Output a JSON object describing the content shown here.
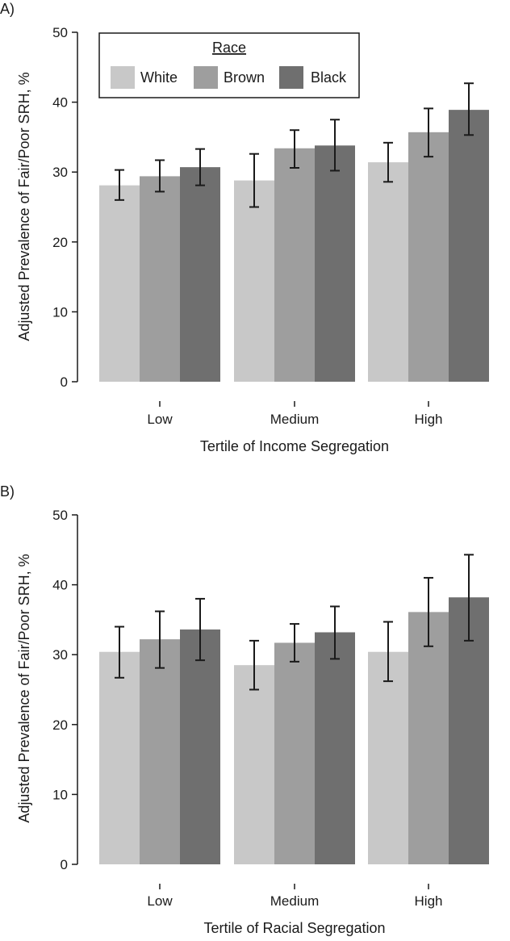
{
  "legend": {
    "title": "Race",
    "entries": [
      "White",
      "Brown",
      "Black"
    ]
  },
  "colors": {
    "White": "#c8c8c8",
    "Brown": "#9e9e9e",
    "Black": "#6f6f6f",
    "axis": "#1a1a1a",
    "errorbar": "#1a1a1a"
  },
  "chart_data": [
    {
      "type": "bar",
      "panel_label": "A)",
      "title": "",
      "xlabel": "Tertile of Income Segregation",
      "ylabel": "Adjusted Prevalence of Fair/Poor SRH, %",
      "ylim": [
        0,
        50
      ],
      "yticks": [
        0,
        10,
        20,
        30,
        40,
        50
      ],
      "categories": [
        "Low",
        "Medium",
        "High"
      ],
      "series": [
        {
          "name": "White",
          "values": [
            28.1,
            28.8,
            31.4
          ],
          "ci_low": [
            26.0,
            25.0,
            28.6
          ],
          "ci_high": [
            30.3,
            32.6,
            34.2
          ]
        },
        {
          "name": "Brown",
          "values": [
            29.4,
            33.4,
            35.7
          ],
          "ci_low": [
            27.2,
            30.6,
            32.2
          ],
          "ci_high": [
            31.7,
            36.0,
            39.1
          ]
        },
        {
          "name": "Black",
          "values": [
            30.7,
            33.8,
            38.9
          ],
          "ci_low": [
            28.1,
            30.2,
            35.3
          ],
          "ci_high": [
            33.3,
            37.5,
            42.7
          ]
        }
      ]
    },
    {
      "type": "bar",
      "panel_label": "B)",
      "title": "",
      "xlabel": "Tertile of Racial Segregation",
      "ylabel": "Adjusted Prevalence of Fair/Poor SRH, %",
      "ylim": [
        0,
        50
      ],
      "yticks": [
        0,
        10,
        20,
        30,
        40,
        50
      ],
      "categories": [
        "Low",
        "Medium",
        "High"
      ],
      "series": [
        {
          "name": "White",
          "values": [
            30.4,
            28.5,
            30.4
          ],
          "ci_low": [
            26.7,
            25.0,
            26.2
          ],
          "ci_high": [
            34.0,
            32.0,
            34.7
          ]
        },
        {
          "name": "Brown",
          "values": [
            32.2,
            31.7,
            36.1
          ],
          "ci_low": [
            28.1,
            29.0,
            31.2
          ],
          "ci_high": [
            36.2,
            34.4,
            41.0
          ]
        },
        {
          "name": "Black",
          "values": [
            33.6,
            33.2,
            38.2
          ],
          "ci_low": [
            29.2,
            29.4,
            32.0
          ],
          "ci_high": [
            38.0,
            36.9,
            44.3
          ]
        }
      ]
    }
  ]
}
